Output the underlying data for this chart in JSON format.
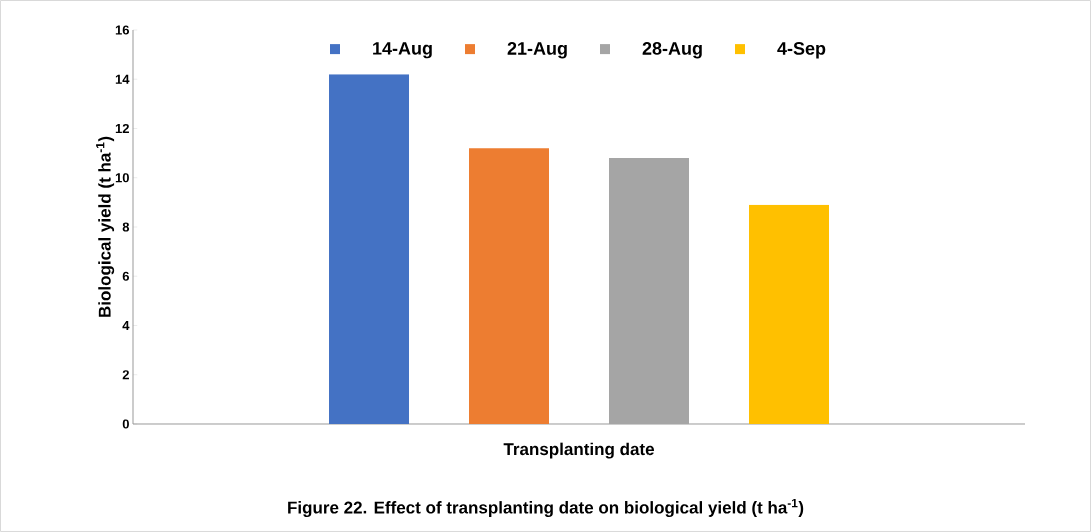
{
  "chart_data": {
    "type": "bar",
    "categories": [
      null
    ],
    "series": [
      {
        "name": "14-Aug",
        "color": "#4472c4",
        "values": [
          14.2
        ]
      },
      {
        "name": "21-Aug",
        "color": "#ed7d31",
        "values": [
          11.2
        ]
      },
      {
        "name": "28-Aug",
        "color": "#a5a5a5",
        "values": [
          10.8
        ]
      },
      {
        "name": "4-Sep",
        "color": "#ffc000",
        "values": [
          8.9
        ]
      }
    ],
    "ylim": [
      0,
      16
    ],
    "yticks": [
      0,
      2,
      4,
      6,
      8,
      10,
      12,
      14,
      16
    ],
    "xlabel": "Transplanting date",
    "ylabel": "Biological yield (t ha$^{-1}$)",
    "annotations": [
      "Figure 22. Effect of transplanting date on biological yield (t ha$^{-1}$)"
    ],
    "legend": "top",
    "grid": false
  }
}
